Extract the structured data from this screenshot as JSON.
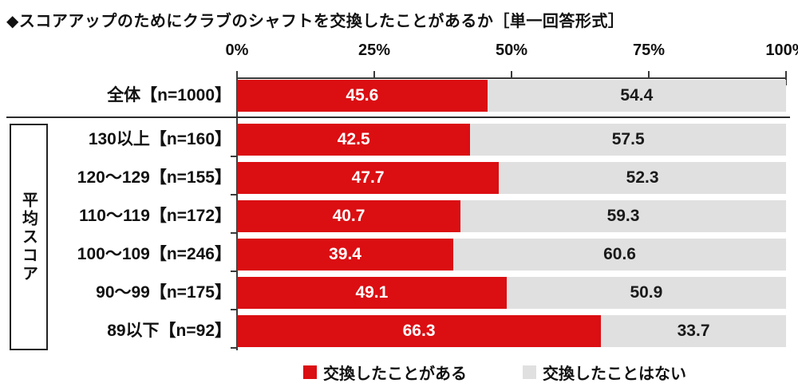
{
  "title": "◆スコアアップのためにクラブのシャフトを交換したことがあるか［単一回答形式］",
  "group_label": "平均スコア",
  "colors": {
    "yes": "#db0e12",
    "no": "#e0e0e0",
    "axis": "#3a3a3a"
  },
  "legend": [
    {
      "label": "交換したことがある",
      "color": "#db0e12"
    },
    {
      "label": "交換したことはない",
      "color": "#e0e0e0"
    }
  ],
  "chart_data": {
    "type": "bar",
    "orientation": "horizontal",
    "stacked": true,
    "title": "スコアアップのためにクラブのシャフトを交換したことがあるか（単一回答形式）",
    "x_tick_labels": [
      "0%",
      "25%",
      "50%",
      "75%",
      "100%"
    ],
    "xlim": [
      0,
      100
    ],
    "legend_position": "bottom",
    "categories": [
      "全体【n=1000】",
      "130以上【n=160】",
      "120～129【n=155】",
      "110～119【n=172】",
      "100～109【n=246】",
      "90～99【n=175】",
      "89以下【n=92】"
    ],
    "series": [
      {
        "name": "交換したことがある",
        "color": "#db0e12",
        "values": [
          45.6,
          42.5,
          47.7,
          40.7,
          39.4,
          49.1,
          66.3
        ]
      },
      {
        "name": "交換したことはない",
        "color": "#e0e0e0",
        "values": [
          54.4,
          57.5,
          52.3,
          59.3,
          60.6,
          50.9,
          33.7
        ]
      }
    ]
  }
}
